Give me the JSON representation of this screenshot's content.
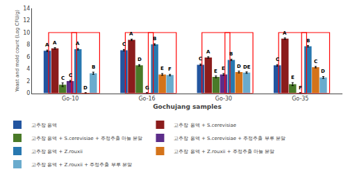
{
  "chart_data": {
    "type": "bar",
    "xlabel": "Gochujang samples",
    "ylabel": "Yeast and mold count (Log CFU/g)",
    "categories": [
      "Go-10",
      "Go-16",
      "Go-30",
      "Go-35"
    ],
    "series": [
      {
        "name": "고추장 용액",
        "color": "#2255a0",
        "values": [
          7.0,
          7.1,
          4.7,
          4.6
        ],
        "errors": [
          0.12,
          0.12,
          0.12,
          0.12
        ],
        "letters": [
          "A",
          "C",
          "C",
          "C"
        ]
      },
      {
        "name": "고추장 용액 + S.cerevisiae",
        "color": "#8b1c1c",
        "values": [
          7.4,
          8.8,
          5.9,
          9.0
        ],
        "errors": [
          0.12,
          0.12,
          0.12,
          0.12
        ],
        "letters": [
          "A",
          "A",
          "A",
          "A"
        ]
      },
      {
        "name": "고추장 용액 + S.cerevisiae + 주정추출 마늘 분말",
        "color": "#4a7a28",
        "values": [
          1.4,
          4.6,
          2.7,
          1.5
        ],
        "errors": [
          0.3,
          0.12,
          0.15,
          0.25
        ],
        "letters": [
          "C",
          "D",
          "E",
          "E"
        ]
      },
      {
        "name": "고추장 용액 + S.cerevisiae + 주정추출 부루 분말",
        "color": "#5c2d8a",
        "values": [
          2.0,
          0.05,
          3.1,
          0.05
        ],
        "errors": [
          0.12,
          0.05,
          0.15,
          0.05
        ],
        "letters": [
          "C",
          "G",
          "E",
          "F"
        ]
      },
      {
        "name": "고추장 용액 + Z.rouxii",
        "color": "#2878b0",
        "values": [
          7.25,
          8.05,
          5.5,
          7.75
        ],
        "errors": [
          0.12,
          0.12,
          0.12,
          0.12
        ],
        "letters": [
          "A",
          "B",
          "B",
          "B"
        ]
      },
      {
        "name": "고추장 용액 + Z.rouxii + 주정추출 마늘 분말",
        "color": "#d4731a",
        "values": [
          0.05,
          3.1,
          3.5,
          4.3
        ],
        "errors": [
          0.05,
          0.15,
          0.15,
          0.12
        ],
        "letters": [
          "D",
          "E",
          "D",
          "C"
        ]
      },
      {
        "name": "고추장 용액 + Z.rouxii + 주정추출 부루 분말",
        "color": "#6aabcd",
        "values": [
          3.3,
          3.0,
          3.4,
          2.6
        ],
        "errors": [
          0.18,
          0.12,
          0.12,
          0.15
        ],
        "letters": [
          "B",
          "F",
          "DE",
          "D"
        ]
      }
    ],
    "boxes": {
      "color": "red",
      "bottom": 0,
      "top": 10,
      "series": [
        [
          1,
          2,
          3
        ],
        [
          4,
          5,
          6
        ]
      ]
    },
    "ylim": [
      0,
      14
    ],
    "yticks": [
      0,
      2,
      4,
      6,
      8,
      10,
      12,
      14
    ],
    "grid": false,
    "legend": "upper right"
  }
}
